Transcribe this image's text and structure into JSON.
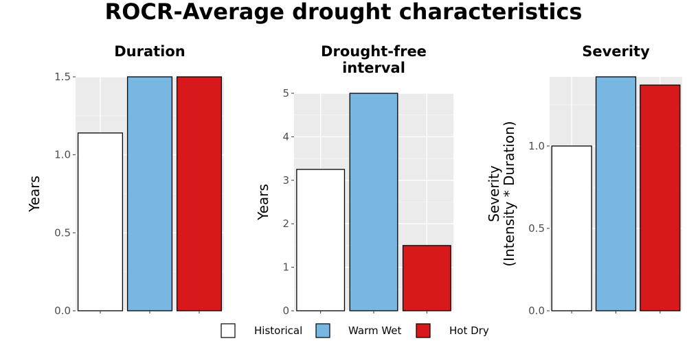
{
  "title": "ROCR-Average drought characteristics",
  "legend": {
    "placement": "bottom",
    "entries": [
      {
        "label": "Historical",
        "color": "#ffffff"
      },
      {
        "label": "Warm Wet",
        "color": "#77b7e2"
      },
      {
        "label": "Hot Dry",
        "color": "#d7191c"
      }
    ]
  },
  "chart_data": [
    {
      "type": "bar",
      "title": "Duration",
      "ylabel": "Years",
      "categories": [
        "Historical",
        "Warm Wet",
        "Hot Dry"
      ],
      "values": [
        1.14,
        1.5,
        1.5
      ],
      "ylim": [
        0,
        1.5
      ],
      "yticks": [
        0.0,
        0.5,
        1.0,
        1.5
      ],
      "ytick_labels": [
        "0.0",
        "0.5",
        "1.0",
        "1.5"
      ],
      "grid": true
    },
    {
      "type": "bar",
      "title": "Drought-free\ninterval",
      "ylabel": "Years",
      "categories": [
        "Historical",
        "Warm Wet",
        "Hot Dry"
      ],
      "values": [
        3.25,
        5.0,
        1.5
      ],
      "ylim": [
        0,
        5
      ],
      "yticks": [
        0,
        1,
        2,
        3,
        4,
        5
      ],
      "ytick_labels": [
        "0",
        "1",
        "2",
        "3",
        "4",
        "5"
      ],
      "grid": true
    },
    {
      "type": "bar",
      "title": "Severity",
      "ylabel": "Severity\n(Intensity * Duration)",
      "categories": [
        "Historical",
        "Warm Wet",
        "Hot Dry"
      ],
      "values": [
        1.0,
        1.42,
        1.37
      ],
      "ylim": [
        0,
        1.42
      ],
      "yticks": [
        0.0,
        0.5,
        1.0
      ],
      "ytick_labels": [
        "0.0",
        "0.5",
        "1.0"
      ],
      "grid": true
    }
  ]
}
